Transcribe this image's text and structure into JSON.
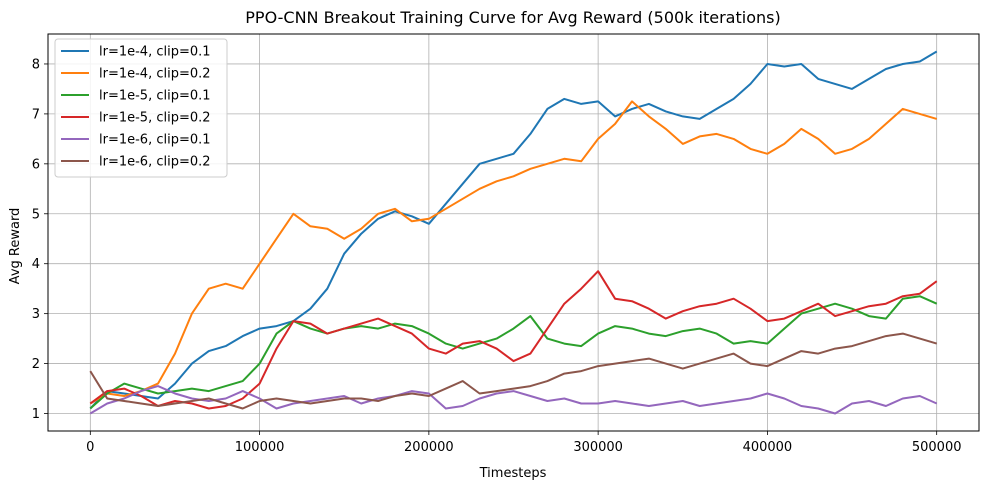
{
  "chart_data": {
    "type": "line",
    "title": "PPO-CNN Breakout Training Curve for Avg Reward (500k iterations)",
    "xlabel": "Timesteps",
    "ylabel": "Avg Reward",
    "xlim": [
      -25000,
      525000
    ],
    "ylim": [
      0.65,
      8.6
    ],
    "xticks": [
      0,
      100000,
      200000,
      300000,
      400000,
      500000
    ],
    "yticks": [
      1,
      2,
      3,
      4,
      5,
      6,
      7,
      8
    ],
    "grid": true,
    "legend_position": "top-left",
    "x": [
      0,
      10000,
      20000,
      30000,
      40000,
      50000,
      60000,
      70000,
      80000,
      90000,
      100000,
      110000,
      120000,
      130000,
      140000,
      150000,
      160000,
      170000,
      180000,
      190000,
      200000,
      210000,
      220000,
      230000,
      240000,
      250000,
      260000,
      270000,
      280000,
      290000,
      300000,
      310000,
      320000,
      330000,
      340000,
      350000,
      360000,
      370000,
      380000,
      390000,
      400000,
      410000,
      420000,
      430000,
      440000,
      450000,
      460000,
      470000,
      480000,
      490000,
      500000
    ],
    "series": [
      {
        "name": "lr=1e-4, clip=0.1",
        "color": "#1f77b4",
        "values": [
          1.1,
          1.45,
          1.4,
          1.35,
          1.3,
          1.6,
          2.0,
          2.25,
          2.35,
          2.55,
          2.7,
          2.75,
          2.85,
          3.1,
          3.5,
          4.2,
          4.6,
          4.9,
          5.05,
          4.95,
          4.8,
          5.2,
          5.6,
          6.0,
          6.1,
          6.2,
          6.6,
          7.1,
          7.3,
          7.2,
          7.25,
          6.95,
          7.1,
          7.2,
          7.05,
          6.95,
          6.9,
          7.1,
          7.3,
          7.6,
          8.0,
          7.95,
          8.0,
          7.7,
          7.6,
          7.5,
          7.7,
          7.9,
          8.0,
          8.05,
          8.25
        ]
      },
      {
        "name": "lr=1e-4, clip=0.2",
        "color": "#ff7f0e",
        "values": [
          1.2,
          1.4,
          1.35,
          1.45,
          1.6,
          2.2,
          3.0,
          3.5,
          3.6,
          3.5,
          4.0,
          4.5,
          5.0,
          4.75,
          4.7,
          4.5,
          4.7,
          5.0,
          5.1,
          4.85,
          4.9,
          5.1,
          5.3,
          5.5,
          5.65,
          5.75,
          5.9,
          6.0,
          6.1,
          6.05,
          6.5,
          6.8,
          7.25,
          6.95,
          6.7,
          6.4,
          6.55,
          6.6,
          6.5,
          6.3,
          6.2,
          6.4,
          6.7,
          6.5,
          6.2,
          6.3,
          6.5,
          6.8,
          7.1,
          7.0,
          6.9
        ]
      },
      {
        "name": "lr=1e-5, clip=0.1",
        "color": "#2ca02c",
        "values": [
          1.1,
          1.4,
          1.6,
          1.5,
          1.4,
          1.45,
          1.5,
          1.45,
          1.55,
          1.65,
          2.0,
          2.6,
          2.85,
          2.7,
          2.6,
          2.7,
          2.75,
          2.7,
          2.8,
          2.75,
          2.6,
          2.4,
          2.3,
          2.4,
          2.5,
          2.7,
          2.95,
          2.5,
          2.4,
          2.35,
          2.6,
          2.75,
          2.7,
          2.6,
          2.55,
          2.65,
          2.7,
          2.6,
          2.4,
          2.45,
          2.4,
          2.7,
          3.0,
          3.1,
          3.2,
          3.1,
          2.95,
          2.9,
          3.3,
          3.35,
          3.2
        ]
      },
      {
        "name": "lr=1e-5, clip=0.2",
        "color": "#d62728",
        "values": [
          1.2,
          1.45,
          1.5,
          1.35,
          1.15,
          1.25,
          1.2,
          1.1,
          1.15,
          1.3,
          1.6,
          2.3,
          2.85,
          2.8,
          2.6,
          2.7,
          2.8,
          2.9,
          2.75,
          2.6,
          2.3,
          2.2,
          2.4,
          2.45,
          2.3,
          2.05,
          2.2,
          2.7,
          3.2,
          3.5,
          3.85,
          3.3,
          3.25,
          3.1,
          2.9,
          3.05,
          3.15,
          3.2,
          3.3,
          3.1,
          2.85,
          2.9,
          3.05,
          3.2,
          2.95,
          3.05,
          3.15,
          3.2,
          3.35,
          3.4,
          3.65
        ]
      },
      {
        "name": "lr=1e-6, clip=0.1",
        "color": "#9467bd",
        "values": [
          1.0,
          1.2,
          1.3,
          1.45,
          1.55,
          1.4,
          1.3,
          1.25,
          1.3,
          1.45,
          1.3,
          1.1,
          1.2,
          1.25,
          1.3,
          1.35,
          1.2,
          1.3,
          1.35,
          1.45,
          1.4,
          1.1,
          1.15,
          1.3,
          1.4,
          1.45,
          1.35,
          1.25,
          1.3,
          1.2,
          1.2,
          1.25,
          1.2,
          1.15,
          1.2,
          1.25,
          1.15,
          1.2,
          1.25,
          1.3,
          1.4,
          1.3,
          1.15,
          1.1,
          1.0,
          1.2,
          1.25,
          1.15,
          1.3,
          1.35,
          1.2
        ]
      },
      {
        "name": "lr=1e-6, clip=0.2",
        "color": "#8c564b",
        "values": [
          1.85,
          1.3,
          1.25,
          1.2,
          1.15,
          1.2,
          1.25,
          1.3,
          1.2,
          1.1,
          1.25,
          1.3,
          1.25,
          1.2,
          1.25,
          1.3,
          1.3,
          1.25,
          1.35,
          1.4,
          1.35,
          1.5,
          1.65,
          1.4,
          1.45,
          1.5,
          1.55,
          1.65,
          1.8,
          1.85,
          1.95,
          2.0,
          2.05,
          2.1,
          2.0,
          1.9,
          2.0,
          2.1,
          2.2,
          2.0,
          1.95,
          2.1,
          2.25,
          2.2,
          2.3,
          2.35,
          2.45,
          2.55,
          2.6,
          2.5,
          2.4
        ]
      }
    ]
  }
}
